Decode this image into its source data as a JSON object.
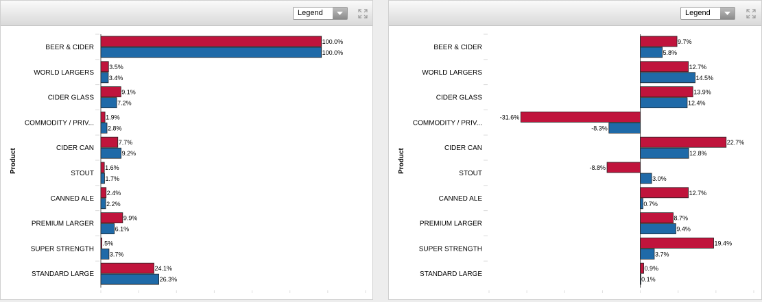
{
  "panels": [
    {
      "legend_label": "Legend",
      "legend_icon": "chevron-down-icon",
      "expand_icon": "expand-icon"
    },
    {
      "legend_label": "Legend",
      "legend_icon": "chevron-down-icon",
      "expand_icon": "expand-icon"
    }
  ],
  "colors": {
    "series_a": "#c0143c",
    "series_b": "#1f6aa8"
  },
  "chart_data": [
    {
      "type": "bar",
      "orientation": "horizontal",
      "ylabel": "Product",
      "categories": [
        "BEER & CIDER",
        "WORLD LARGERS",
        "CIDER GLASS",
        "COMMODITY / PRIV...",
        "CIDER CAN",
        "STOUT",
        "CANNED ALE",
        "PREMIUM LARGER",
        "SUPER STRENGTH",
        "STANDARD LARGE"
      ],
      "series": [
        {
          "values": [
            100.0,
            3.5,
            9.1,
            1.9,
            7.7,
            1.6,
            2.4,
            9.9,
            0.5,
            24.1
          ],
          "labels": [
            "100.0%",
            "3.5%",
            "9.1%",
            "1.9%",
            "7.7%",
            "1.6%",
            "2.4%",
            "9.9%",
            ".5%",
            "24.1%"
          ]
        },
        {
          "values": [
            100.0,
            3.4,
            7.2,
            2.8,
            9.2,
            1.7,
            2.2,
            6.1,
            3.7,
            26.3
          ],
          "labels": [
            "100.0%",
            "3.4%",
            "7.2%",
            "2.8%",
            "9.2%",
            "1.7%",
            "2.2%",
            "6.1%",
            "3.7%",
            "26.3%"
          ]
        }
      ],
      "xlim": [
        0,
        120
      ],
      "grid": false
    },
    {
      "type": "bar",
      "orientation": "horizontal",
      "ylabel": "Product",
      "categories": [
        "BEER & CIDER",
        "WORLD LARGERS",
        "CIDER GLASS",
        "COMMODITY / PRIV...",
        "CIDER CAN",
        "STOUT",
        "CANNED ALE",
        "PREMIUM LARGER",
        "SUPER STRENGTH",
        "STANDARD LARGE"
      ],
      "series": [
        {
          "values": [
            9.7,
            12.7,
            13.9,
            -31.6,
            22.7,
            -8.8,
            12.7,
            8.7,
            19.4,
            0.9
          ],
          "labels": [
            "9.7%",
            "12.7%",
            "13.9%",
            "-31.6%",
            "22.7%",
            "-8.8%",
            "12.7%",
            "8.7%",
            "19.4%",
            "0.9%"
          ]
        },
        {
          "values": [
            5.8,
            14.5,
            12.4,
            -8.3,
            12.8,
            3.0,
            0.7,
            9.4,
            3.7,
            0.1
          ],
          "labels": [
            "5.8%",
            "14.5%",
            "12.4%",
            "-8.3%",
            "12.8%",
            "3.0%",
            "0.7%",
            "9.4%",
            "3.7%",
            "0.1%"
          ]
        }
      ],
      "xlim": [
        -40,
        30
      ],
      "grid": false
    }
  ]
}
